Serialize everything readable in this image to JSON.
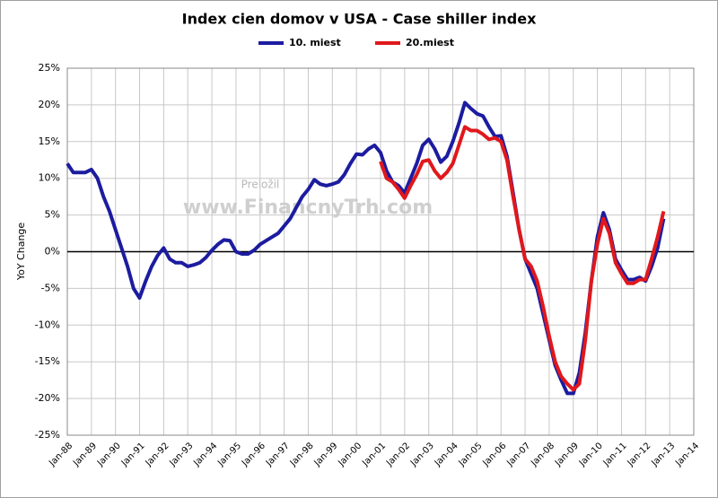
{
  "chart_data": {
    "type": "line",
    "title": "Index cien domov v USA - Case shiller index",
    "ylabel": "YoY Change",
    "annotations": [
      "Preložil",
      "www.FinancnyTrh.com"
    ],
    "x": [
      "1988-01",
      "1988-04",
      "1988-07",
      "1988-10",
      "1989-01",
      "1989-04",
      "1989-07",
      "1989-10",
      "1990-01",
      "1990-04",
      "1990-07",
      "1990-10",
      "1991-01",
      "1991-04",
      "1991-07",
      "1991-10",
      "1992-01",
      "1992-04",
      "1992-07",
      "1992-10",
      "1993-01",
      "1993-04",
      "1993-07",
      "1993-10",
      "1994-01",
      "1994-04",
      "1994-07",
      "1994-10",
      "1995-01",
      "1995-04",
      "1995-07",
      "1995-10",
      "1996-01",
      "1996-04",
      "1996-07",
      "1996-10",
      "1997-01",
      "1997-04",
      "1997-07",
      "1997-10",
      "1998-01",
      "1998-04",
      "1998-07",
      "1998-10",
      "1999-01",
      "1999-04",
      "1999-07",
      "1999-10",
      "2000-01",
      "2000-04",
      "2000-07",
      "2000-10",
      "2001-01",
      "2001-04",
      "2001-07",
      "2001-10",
      "2002-01",
      "2002-04",
      "2002-07",
      "2002-10",
      "2003-01",
      "2003-04",
      "2003-07",
      "2003-10",
      "2004-01",
      "2004-04",
      "2004-07",
      "2004-10",
      "2005-01",
      "2005-04",
      "2005-07",
      "2005-10",
      "2006-01",
      "2006-04",
      "2006-07",
      "2006-10",
      "2007-01",
      "2007-04",
      "2007-07",
      "2007-10",
      "2008-01",
      "2008-04",
      "2008-07",
      "2008-10",
      "2009-01",
      "2009-04",
      "2009-07",
      "2009-10",
      "2010-01",
      "2010-04",
      "2010-07",
      "2010-10",
      "2011-01",
      "2011-04",
      "2011-07",
      "2011-10",
      "2012-01",
      "2012-04",
      "2012-07",
      "2012-10"
    ],
    "series": [
      {
        "name": "10. miest",
        "color": "#1c1ca0",
        "values": [
          12,
          10.8,
          10.8,
          10.8,
          11.2,
          10,
          7.5,
          5.5,
          3,
          0.5,
          -2,
          -5,
          -6.3,
          -4,
          -2,
          -0.5,
          0.5,
          -1,
          -1.5,
          -1.5,
          -2,
          -1.8,
          -1.5,
          -0.8,
          0.2,
          1,
          1.6,
          1.5,
          0,
          -0.3,
          -0.3,
          0.2,
          1,
          1.5,
          2,
          2.5,
          3.5,
          4.5,
          6,
          7.5,
          8.5,
          9.8,
          9.2,
          9,
          9.2,
          9.5,
          10.5,
          12,
          13.3,
          13.2,
          14,
          14.5,
          13.5,
          11,
          9.5,
          9,
          8,
          10,
          12,
          14.5,
          15.3,
          14,
          12.2,
          13,
          15,
          17.5,
          20.3,
          19.5,
          18.8,
          18.5,
          17,
          15.7,
          15.8,
          13,
          8,
          3,
          -1,
          -3,
          -5,
          -8.5,
          -12,
          -15.5,
          -17.5,
          -19.3,
          -19.3,
          -16.5,
          -11,
          -4,
          2,
          5.3,
          3,
          -1,
          -2.5,
          -3.8,
          -3.8,
          -3.5,
          -4,
          -2,
          0.5,
          4.5
        ]
      },
      {
        "name": "20.miest",
        "color": "#e0181c",
        "values": [
          null,
          null,
          null,
          null,
          null,
          null,
          null,
          null,
          null,
          null,
          null,
          null,
          null,
          null,
          null,
          null,
          null,
          null,
          null,
          null,
          null,
          null,
          null,
          null,
          null,
          null,
          null,
          null,
          null,
          null,
          null,
          null,
          null,
          null,
          null,
          null,
          null,
          null,
          null,
          null,
          null,
          null,
          null,
          null,
          null,
          null,
          null,
          null,
          null,
          null,
          null,
          null,
          12.3,
          10,
          9.5,
          8.5,
          7.3,
          9,
          10.5,
          12.3,
          12.5,
          11,
          10,
          10.8,
          12,
          14.5,
          17,
          16.5,
          16.5,
          16,
          15.3,
          15.5,
          15,
          12.5,
          7.5,
          3,
          -1,
          -2,
          -4,
          -7.5,
          -11.5,
          -15,
          -17,
          -18,
          -18.8,
          -18,
          -12,
          -4,
          1,
          4.5,
          2.5,
          -1.5,
          -3,
          -4.3,
          -4.3,
          -3.8,
          -3.8,
          -1,
          2,
          5.5
        ]
      }
    ],
    "xlim": [
      "1988-01",
      "2014-01"
    ],
    "xticks": [
      {
        "value": "1988-01",
        "label": "Jan-88"
      },
      {
        "value": "1989-01",
        "label": "Jan-89"
      },
      {
        "value": "1990-01",
        "label": "Jan-90"
      },
      {
        "value": "1991-01",
        "label": "Jan-91"
      },
      {
        "value": "1992-01",
        "label": "Jan-92"
      },
      {
        "value": "1993-01",
        "label": "Jan-93"
      },
      {
        "value": "1994-01",
        "label": "Jan-94"
      },
      {
        "value": "1995-01",
        "label": "Jan-95"
      },
      {
        "value": "1996-01",
        "label": "Jan-96"
      },
      {
        "value": "1997-01",
        "label": "Jan-97"
      },
      {
        "value": "1998-01",
        "label": "Jan-98"
      },
      {
        "value": "1999-01",
        "label": "Jan-99"
      },
      {
        "value": "2000-01",
        "label": "Jan-00"
      },
      {
        "value": "2001-01",
        "label": "Jan-01"
      },
      {
        "value": "2002-01",
        "label": "Jan-02"
      },
      {
        "value": "2003-01",
        "label": "Jan-03"
      },
      {
        "value": "2004-01",
        "label": "Jan-04"
      },
      {
        "value": "2005-01",
        "label": "Jan-05"
      },
      {
        "value": "2006-01",
        "label": "Jan-06"
      },
      {
        "value": "2007-01",
        "label": "Jan-07"
      },
      {
        "value": "2008-01",
        "label": "Jan-08"
      },
      {
        "value": "2009-01",
        "label": "Jan-09"
      },
      {
        "value": "2010-01",
        "label": "Jan-10"
      },
      {
        "value": "2011-01",
        "label": "Jan-11"
      },
      {
        "value": "2012-01",
        "label": "Jan-12"
      },
      {
        "value": "2013-01",
        "label": "Jan-13"
      },
      {
        "value": "2014-01",
        "label": "Jan-14"
      }
    ],
    "ylim": [
      -25,
      25
    ],
    "yticks": [
      {
        "value": -25,
        "label": "-25%"
      },
      {
        "value": -20,
        "label": "-20%"
      },
      {
        "value": -15,
        "label": "-15%"
      },
      {
        "value": -10,
        "label": "-10%"
      },
      {
        "value": -5,
        "label": "-5%"
      },
      {
        "value": 0,
        "label": "0%"
      },
      {
        "value": 5,
        "label": "5%"
      },
      {
        "value": 10,
        "label": "10%"
      },
      {
        "value": 15,
        "label": "15%"
      },
      {
        "value": 20,
        "label": "20%"
      },
      {
        "value": 25,
        "label": "25%"
      }
    ],
    "grid": true,
    "legend": "top"
  }
}
